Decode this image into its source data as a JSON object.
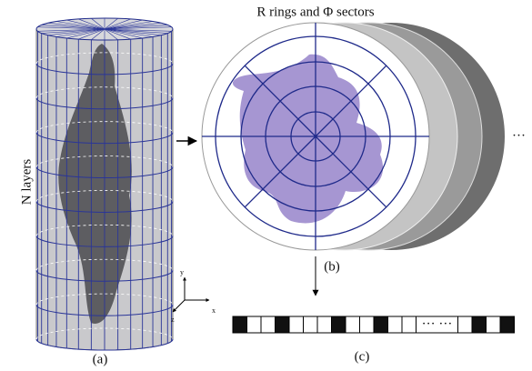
{
  "figure": {
    "title": "R rings and Φ sectors",
    "layers_label": "N layers",
    "panel_a": "(a)",
    "panel_b": "(b)",
    "panel_c": "(c)",
    "axis_y": "y",
    "axis_x": "x",
    "axis_z": "z",
    "more_discs": "···",
    "barcode_gap": "··· ···"
  }
}
